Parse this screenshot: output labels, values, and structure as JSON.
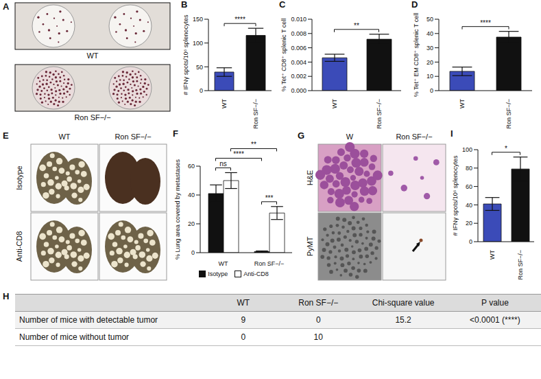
{
  "chart_data": [
    {
      "panel": "B",
      "type": "bar",
      "categories": [
        "WT",
        "Ron SF−/−"
      ],
      "values": [
        39,
        116
      ],
      "errors": [
        9,
        15
      ],
      "colors": [
        "#3b4bb8",
        "#111111"
      ],
      "ylabel": "# IFNγ spots/10⁶ splenocytes",
      "ylim": [
        0,
        150
      ],
      "yticks": [
        0,
        50,
        100,
        150
      ],
      "annotations": [
        {
          "text": "****",
          "from": 0,
          "to": 1
        }
      ]
    },
    {
      "panel": "C",
      "type": "bar",
      "categories": [
        "WT",
        "Ron SF−/−"
      ],
      "values": [
        0.0046,
        0.0072
      ],
      "errors": [
        0.0005,
        0.0007
      ],
      "colors": [
        "#3b4bb8",
        "#111111"
      ],
      "ylabel": "% Tet⁺ CD8⁺ splenic T cell",
      "ylim": [
        0,
        0.01
      ],
      "yticks": [
        {
          "value": 0,
          "label": "0.000"
        },
        {
          "value": 0.002,
          "label": "0.002"
        },
        {
          "value": 0.004,
          "label": "0.004"
        },
        {
          "value": 0.006,
          "label": "0.006"
        },
        {
          "value": 0.008,
          "label": "0.008"
        },
        {
          "value": 0.01,
          "label": "0.010"
        }
      ],
      "annotations": [
        {
          "text": "**",
          "from": 0,
          "to": 1
        }
      ]
    },
    {
      "panel": "D",
      "type": "bar",
      "categories": [
        "WT",
        "Ron SF−/−"
      ],
      "values": [
        13.5,
        37.5
      ],
      "errors": [
        3,
        4
      ],
      "colors": [
        "#3b4bb8",
        "#111111"
      ],
      "ylabel": "% Tet⁺ EM CD8⁺ splenic T cell",
      "ylim": [
        0,
        50
      ],
      "yticks": [
        0,
        10,
        20,
        30,
        40,
        50
      ],
      "annotations": [
        {
          "text": "****",
          "from": 0,
          "to": 1
        }
      ]
    },
    {
      "panel": "F",
      "type": "bar",
      "categories": [
        "WT",
        "Ron SF−/−"
      ],
      "series": [
        {
          "name": "Isotype",
          "color": "#111111",
          "values": [
            41,
            0.8
          ],
          "errors": [
            6,
            0.4
          ]
        },
        {
          "name": "Anti-CD8",
          "color": "#ffffff",
          "values": [
            50,
            27.5
          ],
          "errors": [
            5.5,
            4.5
          ]
        }
      ],
      "ylabel": "% Lung area covered by metastases",
      "ylim": [
        0,
        60
      ],
      "yticks": [
        0,
        20,
        40,
        60
      ],
      "legend": "bottom",
      "annotations": [
        {
          "text": "ns",
          "from": [
            0,
            0
          ],
          "to": [
            0,
            1
          ]
        },
        {
          "text": "***",
          "from": [
            1,
            0
          ],
          "to": [
            1,
            1
          ]
        },
        {
          "text": "****",
          "from": [
            0,
            0
          ],
          "to": [
            1,
            0
          ]
        },
        {
          "text": "**",
          "from": [
            0,
            1
          ],
          "to": [
            1,
            1
          ]
        }
      ]
    },
    {
      "panel": "I",
      "type": "bar",
      "categories": [
        "WT",
        "Ron SF−/−"
      ],
      "values": [
        41,
        79
      ],
      "errors": [
        7,
        13
      ],
      "colors": [
        "#3b4bb8",
        "#111111"
      ],
      "ylabel": "# IFNγ spots/10⁶ splenocytes",
      "ylim": [
        0,
        100
      ],
      "yticks": [
        0,
        20,
        40,
        60,
        80,
        100
      ],
      "annotations": [
        {
          "text": "*",
          "from": 0,
          "to": 1
        }
      ]
    }
  ],
  "images": [
    {
      "panel": "A",
      "row_labels": [
        "WT",
        "Ron SF−/−"
      ]
    },
    {
      "panel": "E",
      "columns": [
        "WT",
        "Ron SF−/−"
      ],
      "rows": [
        "Isotype",
        "Anti-CD8"
      ]
    },
    {
      "panel": "G",
      "columns": [
        "W",
        "Ron SF−/−"
      ],
      "rows": [
        "H&E",
        "PyMT"
      ]
    }
  ],
  "table": {
    "panel": "H",
    "header": [
      null,
      "WT",
      "Ron SF−/−",
      "Chi-square value",
      "P value"
    ],
    "rows": [
      [
        "Number of mice with detectable tumor",
        9,
        0,
        15.2,
        "<0.0001 (****)"
      ],
      [
        "Number of mice without tumor",
        0,
        10,
        null,
        null
      ]
    ]
  }
}
